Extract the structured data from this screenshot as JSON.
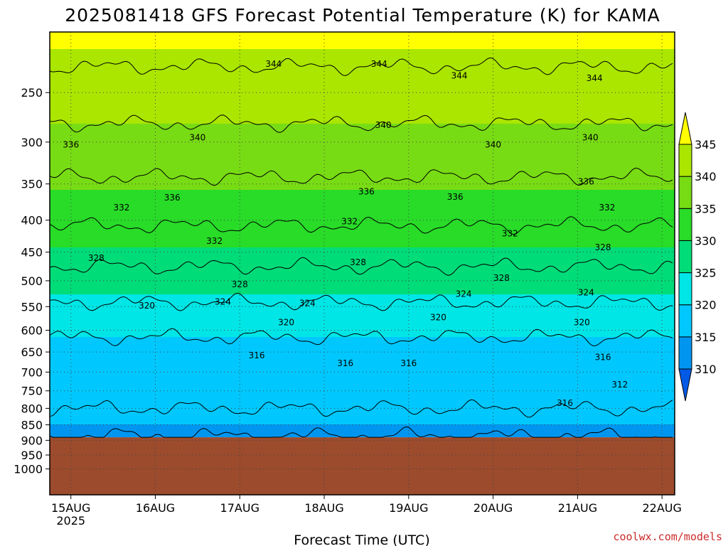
{
  "chart_data": {
    "type": "heatmap",
    "title": "2025081418 GFS Forecast Potential Temperature (K) for KAMA",
    "xlabel": "Forecast Time (UTC)",
    "credit": "coolwx.com/models",
    "y_scale": "log-pressure (inverted)",
    "x_range": [
      -0.25,
      7.15
    ],
    "y_range": [
      1100,
      200
    ],
    "y_ticks": [
      250,
      300,
      350,
      400,
      450,
      500,
      550,
      600,
      650,
      700,
      750,
      800,
      850,
      900,
      950,
      1000
    ],
    "y_tick_labels": [
      "250",
      "300",
      "350",
      "400",
      "450",
      "500",
      "550",
      "600",
      "650",
      "700",
      "750",
      "800",
      "850",
      "900",
      "950",
      "1000"
    ],
    "x_ticks": [
      0,
      1,
      2,
      3,
      4,
      5,
      6,
      7
    ],
    "x_tick_labels": [
      "15AUG",
      "16AUG",
      "17AUG",
      "18AUG",
      "19AUG",
      "20AUG",
      "21AUG",
      "22AUG"
    ],
    "x_tick_sublabels": [
      "2025",
      "",
      "",
      "",
      "",
      "",
      "",
      ""
    ],
    "grid": true,
    "surface_pressure_hPa": 890,
    "surface_color": "#9c4b2d",
    "colorbar": {
      "levels": [
        310,
        315,
        320,
        325,
        330,
        335,
        340,
        345
      ],
      "labels": [
        "310",
        "315",
        "320",
        "325",
        "330",
        "335",
        "340",
        "345"
      ],
      "colors": [
        "#005ae6",
        "#0096f0",
        "#00c8ff",
        "#00e6e6",
        "#00dc78",
        "#28dc28",
        "#78dc14",
        "#aae600",
        "#ffff00"
      ]
    },
    "contour_values": [
      312,
      316,
      320,
      324,
      328,
      332,
      336,
      340,
      344
    ],
    "contour_profile": {
      "pressure_hPa": [
        885,
        850,
        800,
        700,
        600,
        550,
        500,
        450,
        400,
        350,
        300,
        250,
        200
      ],
      "theta_K": [
        313,
        315,
        316,
        317.5,
        320.5,
        323.5,
        326.5,
        329.5,
        332.5,
        335.5,
        338.5,
        342.5,
        346
      ]
    },
    "contour_labels": [
      {
        "text": "344",
        "x": 2.4,
        "p": 225
      },
      {
        "text": "344",
        "x": 3.65,
        "p": 225
      },
      {
        "text": "344",
        "x": 4.6,
        "p": 235
      },
      {
        "text": "344",
        "x": 6.2,
        "p": 237
      },
      {
        "text": "336",
        "x": 0.0,
        "p": 303
      },
      {
        "text": "340",
        "x": 1.5,
        "p": 295
      },
      {
        "text": "340",
        "x": 3.7,
        "p": 282
      },
      {
        "text": "340",
        "x": 5.0,
        "p": 303
      },
      {
        "text": "340",
        "x": 6.15,
        "p": 295
      },
      {
        "text": "336",
        "x": 1.2,
        "p": 368
      },
      {
        "text": "336",
        "x": 3.5,
        "p": 360
      },
      {
        "text": "336",
        "x": 4.55,
        "p": 367
      },
      {
        "text": "336",
        "x": 6.1,
        "p": 347
      },
      {
        "text": "332",
        "x": 0.6,
        "p": 382
      },
      {
        "text": "332",
        "x": 1.7,
        "p": 432
      },
      {
        "text": "332",
        "x": 3.3,
        "p": 402
      },
      {
        "text": "332",
        "x": 5.2,
        "p": 420
      },
      {
        "text": "332",
        "x": 6.35,
        "p": 382
      },
      {
        "text": "328",
        "x": 0.3,
        "p": 460
      },
      {
        "text": "328",
        "x": 2.0,
        "p": 507
      },
      {
        "text": "328",
        "x": 3.4,
        "p": 467
      },
      {
        "text": "328",
        "x": 5.1,
        "p": 495
      },
      {
        "text": "328",
        "x": 6.3,
        "p": 442
      },
      {
        "text": "320",
        "x": 0.9,
        "p": 548
      },
      {
        "text": "324",
        "x": 1.8,
        "p": 540
      },
      {
        "text": "324",
        "x": 2.8,
        "p": 543
      },
      {
        "text": "324",
        "x": 4.65,
        "p": 525
      },
      {
        "text": "324",
        "x": 6.1,
        "p": 522
      },
      {
        "text": "320",
        "x": 2.55,
        "p": 583
      },
      {
        "text": "320",
        "x": 4.35,
        "p": 572
      },
      {
        "text": "320",
        "x": 6.05,
        "p": 583
      },
      {
        "text": "316",
        "x": 2.2,
        "p": 658
      },
      {
        "text": "316",
        "x": 3.25,
        "p": 678
      },
      {
        "text": "316",
        "x": 4.0,
        "p": 678
      },
      {
        "text": "316",
        "x": 5.85,
        "p": 785
      },
      {
        "text": "316",
        "x": 6.3,
        "p": 663
      },
      {
        "text": "312",
        "x": 6.5,
        "p": 733
      }
    ]
  }
}
